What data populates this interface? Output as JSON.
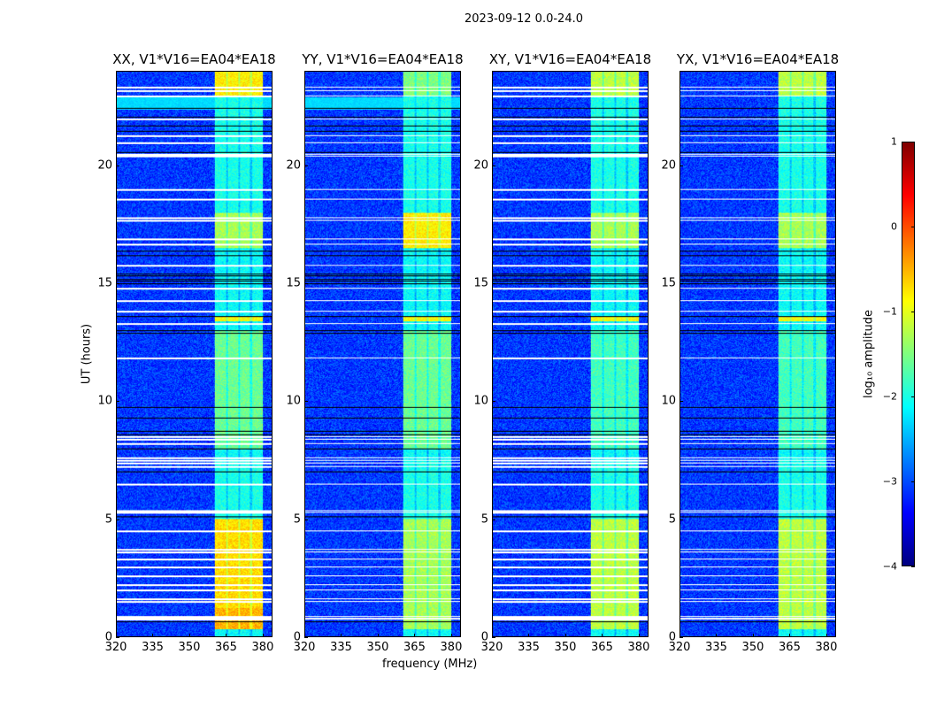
{
  "figure_title": "2023-09-12 0.0-24.0",
  "chart_data": {
    "type": "heatmap",
    "xlabel": "frequency (MHz)",
    "ylabel": "UT (hours)",
    "xlim": [
      320,
      384
    ],
    "ylim": [
      0,
      24
    ],
    "xticks": [
      "320",
      "335",
      "350",
      "365",
      "380"
    ],
    "xtick_values": [
      320,
      335,
      350,
      365,
      380
    ],
    "yticks": [
      "0",
      "5",
      "10",
      "15",
      "20"
    ],
    "ytick_values": [
      0,
      5,
      10,
      15,
      20
    ],
    "background_level": -3.1,
    "band_range_mhz": [
      360.5,
      380.5
    ],
    "band_gaps_mhz": [
      365.5,
      370.5,
      375.5
    ],
    "flagged_white_ut": [
      0.75,
      0.8,
      0.85,
      1.5,
      1.6,
      2.0,
      2.2,
      2.6,
      2.95,
      3.3,
      3.6,
      3.7,
      4.5,
      5.3,
      5.35,
      6.5,
      7.25,
      7.4,
      7.5,
      7.6,
      8.2,
      8.4,
      8.5,
      11.85,
      13.3,
      13.85,
      14.3,
      14.8,
      15.8,
      16.7,
      16.9,
      17.7,
      17.8,
      18.6,
      19.0,
      20.45,
      20.5,
      21.0,
      21.3,
      22.0,
      23.0,
      23.2,
      23.35
    ],
    "flagged_black_ut": [
      0.65,
      5.1,
      7.0,
      8.0,
      8.6,
      8.75,
      9.3,
      9.75,
      12.9,
      13.0,
      13.6,
      15.0,
      15.1,
      15.2,
      15.35,
      15.4,
      16.2,
      16.4,
      20.6,
      21.5,
      21.7,
      22.1,
      22.45
    ],
    "panels": [
      {
        "title": "XX, V1*V16=EA04*EA18",
        "segments": [
          [
            0.3,
            1.2,
            -0.5
          ],
          [
            1.2,
            5.0,
            -0.7
          ],
          [
            5.0,
            7.5,
            -2.0
          ],
          [
            8.0,
            13.0,
            -1.6
          ],
          [
            13.4,
            13.6,
            -0.9
          ],
          [
            13.6,
            16.5,
            -2.1
          ],
          [
            16.5,
            18.0,
            -1.3
          ],
          [
            18.0,
            23.0,
            -2.0
          ],
          [
            23.0,
            24.0,
            -0.8
          ]
        ],
        "cyan_band": [
          22.4,
          22.9
        ]
      },
      {
        "title": "YY, V1*V16=EA04*EA18",
        "segments": [
          [
            0.3,
            5.0,
            -1.3
          ],
          [
            5.0,
            7.5,
            -2.0
          ],
          [
            8.0,
            13.0,
            -1.6
          ],
          [
            13.4,
            13.6,
            -0.9
          ],
          [
            13.6,
            16.5,
            -2.1
          ],
          [
            16.5,
            18.0,
            -0.8
          ],
          [
            18.0,
            23.0,
            -2.0
          ],
          [
            23.0,
            24.0,
            -1.5
          ]
        ],
        "cyan_band": [
          22.4,
          22.9
        ]
      },
      {
        "title": "XY, V1*V16=EA04*EA18",
        "segments": [
          [
            0.3,
            5.0,
            -1.2
          ],
          [
            5.0,
            7.5,
            -2.0
          ],
          [
            8.0,
            13.0,
            -1.8
          ],
          [
            13.4,
            13.6,
            -0.9
          ],
          [
            13.6,
            16.5,
            -2.1
          ],
          [
            16.5,
            18.0,
            -1.3
          ],
          [
            18.0,
            23.0,
            -2.0
          ],
          [
            23.0,
            24.0,
            -1.2
          ]
        ],
        "cyan_band": null
      },
      {
        "title": "YX, V1*V16=EA04*EA18",
        "segments": [
          [
            0.3,
            5.0,
            -1.2
          ],
          [
            5.0,
            7.5,
            -2.0
          ],
          [
            8.0,
            13.0,
            -1.8
          ],
          [
            13.4,
            13.6,
            -0.9
          ],
          [
            13.6,
            16.5,
            -2.1
          ],
          [
            16.5,
            18.0,
            -1.3
          ],
          [
            18.0,
            23.0,
            -2.0
          ],
          [
            23.0,
            24.0,
            -1.2
          ]
        ],
        "cyan_band": null
      }
    ],
    "colorbar": {
      "label": "log₁₀ amplitude",
      "range": [
        -4,
        1
      ],
      "ticks": [
        "1",
        "0",
        "−1",
        "−2",
        "−3",
        "−4"
      ],
      "tick_values": [
        1,
        0,
        -1,
        -2,
        -3,
        -4
      ],
      "colormap": "jet"
    }
  }
}
